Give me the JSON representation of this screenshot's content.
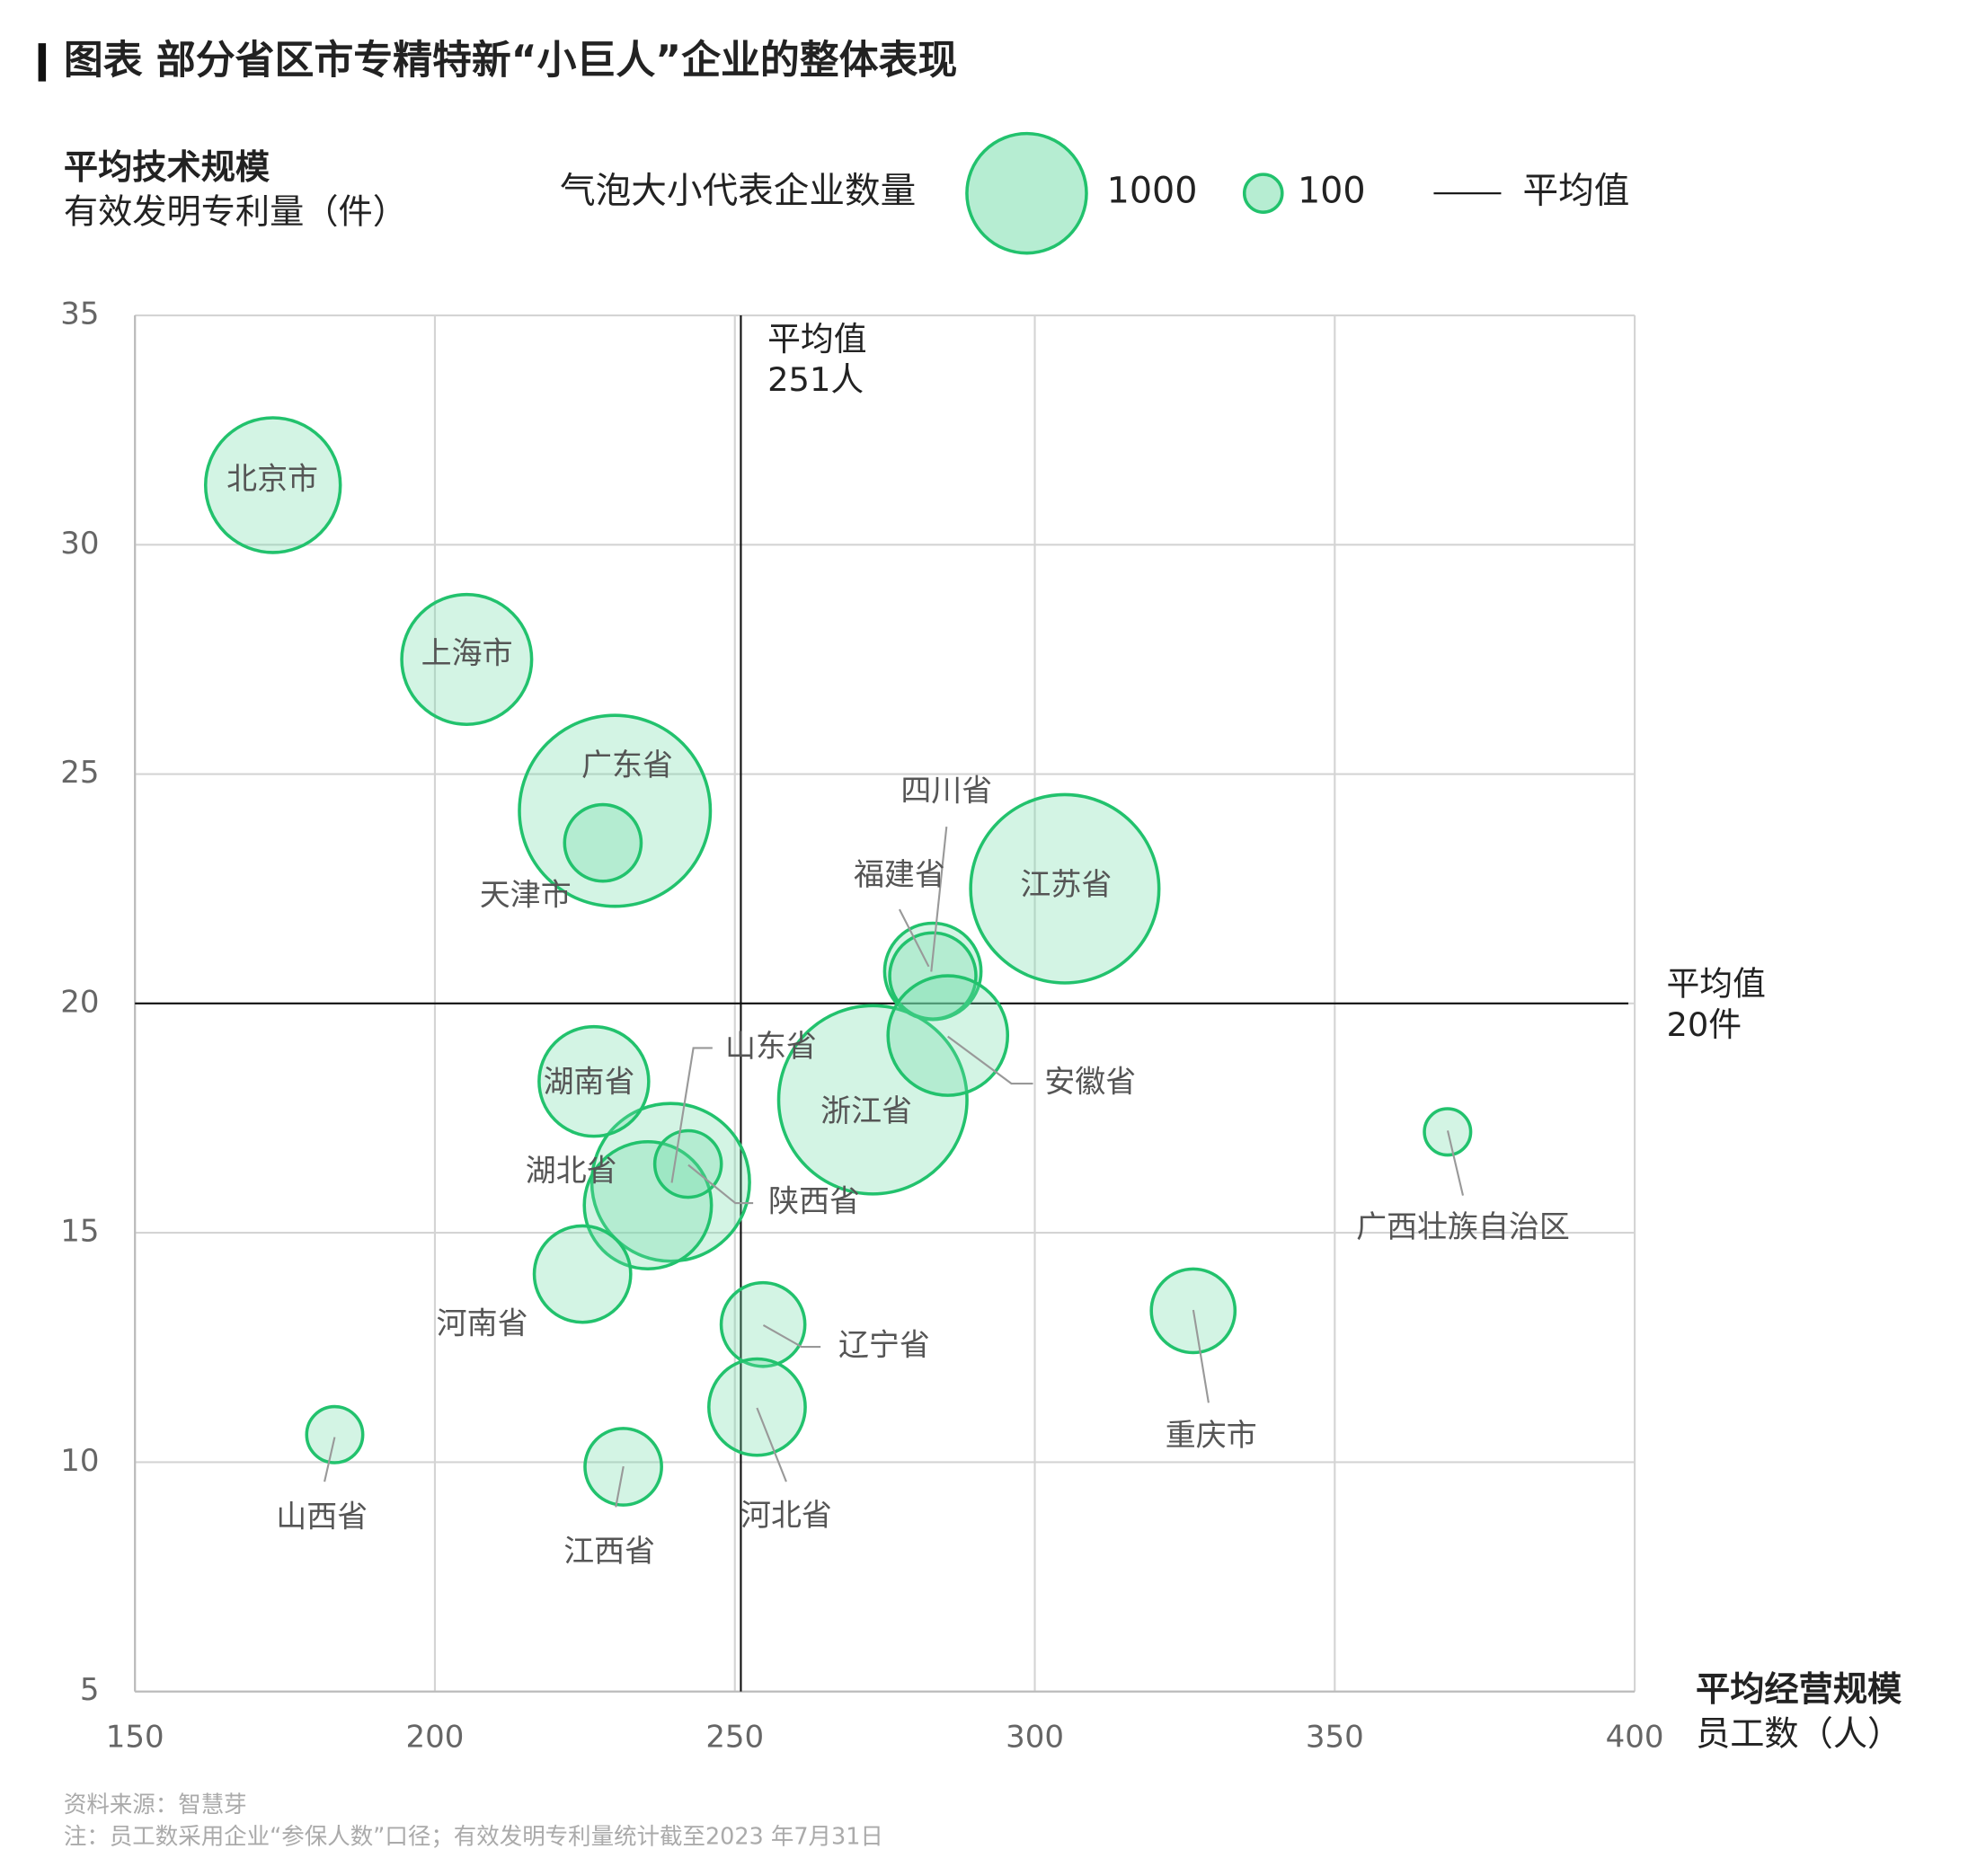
{
  "chart_data": {
    "type": "bubble",
    "title": "图表 部分省区市专精特新“小巨人”企业的整体表现",
    "y_label": [
      "平均技术规模",
      "有效发明专利量（件）"
    ],
    "x_label": [
      "平均经营规模",
      "员工数（人）"
    ],
    "size_legend_title": "气泡大小代表企业数量",
    "size_legend": [
      1000,
      100
    ],
    "mean_legend": "平均值",
    "xlim": [
      150,
      400
    ],
    "xticks": [
      150,
      200,
      250,
      300,
      350,
      400
    ],
    "ylim": [
      5,
      35
    ],
    "yticks": [
      5,
      10,
      15,
      20,
      25,
      30,
      35
    ],
    "grid": true,
    "x_mean": 251,
    "x_mean_label": [
      "平均值",
      "251人"
    ],
    "y_mean": 20,
    "y_mean_label": [
      "平均值",
      "20件"
    ],
    "color": "#22c26d",
    "labels": [
      "北京市",
      "上海市",
      "广东省",
      "天津市",
      "江苏省",
      "浙江省",
      "四川省",
      "福建省",
      "安徽省",
      "山东省",
      "湖北省",
      "陕西省",
      "湖南省",
      "河南省",
      "辽宁省",
      "河北省",
      "重庆市",
      "广西壮族自治区",
      "山西省",
      "江西省"
    ],
    "x": [
      173,
      205.3,
      230,
      228,
      305,
      273,
      283,
      283,
      285.5,
      239.3,
      235.5,
      242.2,
      226.5,
      224.6,
      254.7,
      253.7,
      326.4,
      368.8,
      183.3,
      231.4
    ],
    "y": [
      31.3,
      27.5,
      24.2,
      23.5,
      22.5,
      17.9,
      20.7,
      20.6,
      19.3,
      16.1,
      15.6,
      16.5,
      18.3,
      14.1,
      13.0,
      11.2,
      13.3,
      17.2,
      10.6,
      9.9
    ],
    "sizes": [
      1270,
      1180,
      2550,
      410,
      2480,
      2480,
      650,
      520,
      1000,
      1740,
      1130,
      310,
      840,
      650,
      490,
      650,
      490,
      150,
      220,
      410
    ],
    "source": "资料来源：智慧芽",
    "note": "注：员工数采用企业“参保人数”口径；有效发明专利量统计截至2023 年7月31日"
  }
}
